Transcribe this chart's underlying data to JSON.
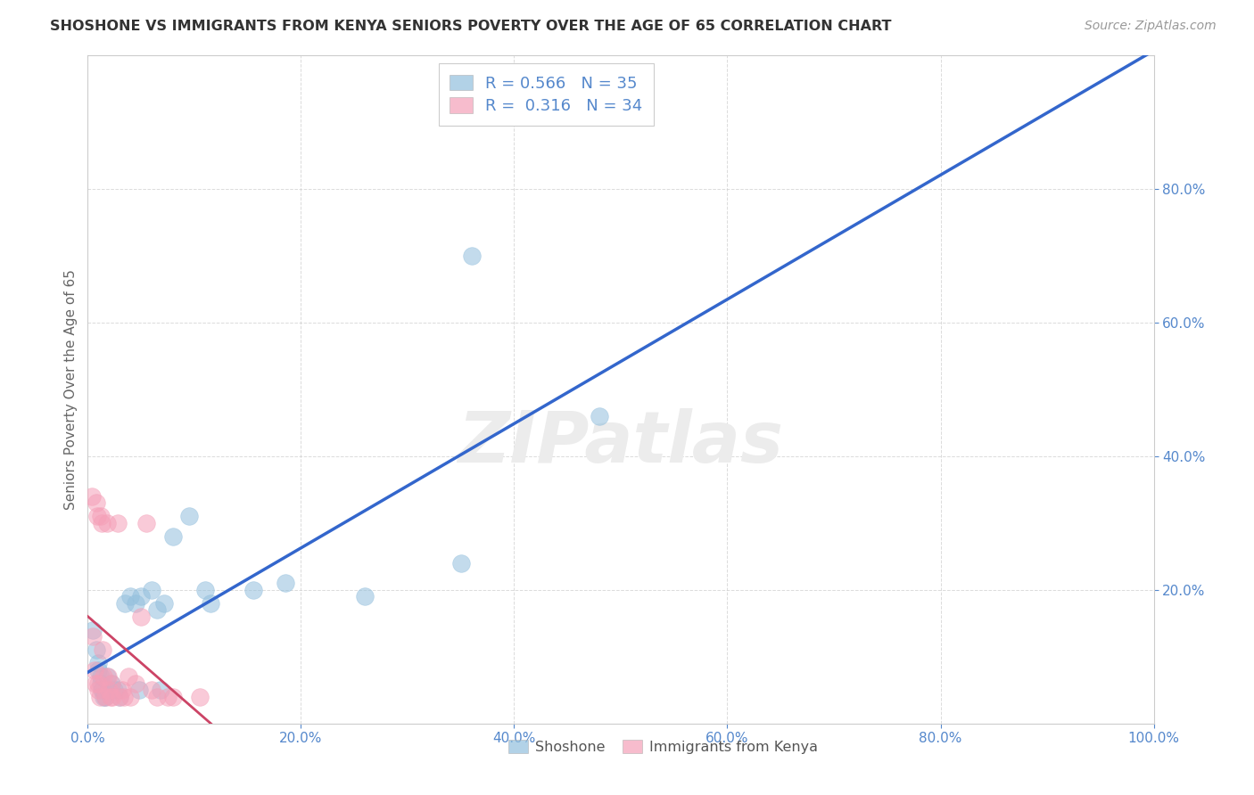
{
  "title": "SHOSHONE VS IMMIGRANTS FROM KENYA SENIORS POVERTY OVER THE AGE OF 65 CORRELATION CHART",
  "source": "Source: ZipAtlas.com",
  "ylabel": "Seniors Poverty Over the Age of 65",
  "xlim": [
    0,
    1.0
  ],
  "ylim": [
    0,
    1.0
  ],
  "xtick_vals": [
    0.0,
    0.2,
    0.4,
    0.6,
    0.8,
    1.0
  ],
  "ytick_vals": [
    0.2,
    0.4,
    0.6,
    0.8
  ],
  "legend_label1": "Shoshone",
  "legend_label2": "Immigrants from Kenya",
  "legend_r1": "R = 0.566",
  "legend_n1": "N = 35",
  "legend_r2": "R =  0.316",
  "legend_n2": "N = 34",
  "shoshone_color": "#92bfdd",
  "kenya_color": "#f5a0b8",
  "blue_line_color": "#3366cc",
  "pink_line_color": "#cc4466",
  "tick_color": "#5588cc",
  "watermark": "ZIPatlas",
  "background_color": "#ffffff",
  "grid_color": "#cccccc",
  "shoshone_scatter": [
    [
      0.005,
      0.14
    ],
    [
      0.008,
      0.11
    ],
    [
      0.01,
      0.09
    ],
    [
      0.01,
      0.08
    ],
    [
      0.012,
      0.07
    ],
    [
      0.012,
      0.06
    ],
    [
      0.013,
      0.05
    ],
    [
      0.014,
      0.05
    ],
    [
      0.015,
      0.04
    ],
    [
      0.016,
      0.04
    ],
    [
      0.018,
      0.07
    ],
    [
      0.02,
      0.05
    ],
    [
      0.022,
      0.06
    ],
    [
      0.025,
      0.05
    ],
    [
      0.028,
      0.05
    ],
    [
      0.03,
      0.04
    ],
    [
      0.035,
      0.18
    ],
    [
      0.04,
      0.19
    ],
    [
      0.045,
      0.18
    ],
    [
      0.048,
      0.05
    ],
    [
      0.05,
      0.19
    ],
    [
      0.06,
      0.2
    ],
    [
      0.065,
      0.17
    ],
    [
      0.068,
      0.05
    ],
    [
      0.072,
      0.18
    ],
    [
      0.08,
      0.28
    ],
    [
      0.095,
      0.31
    ],
    [
      0.11,
      0.2
    ],
    [
      0.115,
      0.18
    ],
    [
      0.155,
      0.2
    ],
    [
      0.185,
      0.21
    ],
    [
      0.26,
      0.19
    ],
    [
      0.35,
      0.24
    ],
    [
      0.36,
      0.7
    ],
    [
      0.48,
      0.46
    ]
  ],
  "kenya_scatter": [
    [
      0.004,
      0.34
    ],
    [
      0.005,
      0.13
    ],
    [
      0.006,
      0.08
    ],
    [
      0.007,
      0.06
    ],
    [
      0.008,
      0.33
    ],
    [
      0.009,
      0.31
    ],
    [
      0.01,
      0.06
    ],
    [
      0.01,
      0.05
    ],
    [
      0.011,
      0.04
    ],
    [
      0.012,
      0.31
    ],
    [
      0.013,
      0.3
    ],
    [
      0.014,
      0.11
    ],
    [
      0.015,
      0.07
    ],
    [
      0.016,
      0.04
    ],
    [
      0.018,
      0.3
    ],
    [
      0.019,
      0.07
    ],
    [
      0.02,
      0.05
    ],
    [
      0.021,
      0.04
    ],
    [
      0.022,
      0.06
    ],
    [
      0.023,
      0.04
    ],
    [
      0.028,
      0.3
    ],
    [
      0.03,
      0.04
    ],
    [
      0.032,
      0.05
    ],
    [
      0.034,
      0.04
    ],
    [
      0.038,
      0.07
    ],
    [
      0.04,
      0.04
    ],
    [
      0.045,
      0.06
    ],
    [
      0.05,
      0.16
    ],
    [
      0.055,
      0.3
    ],
    [
      0.06,
      0.05
    ],
    [
      0.065,
      0.04
    ],
    [
      0.075,
      0.04
    ],
    [
      0.08,
      0.04
    ],
    [
      0.105,
      0.04
    ]
  ]
}
